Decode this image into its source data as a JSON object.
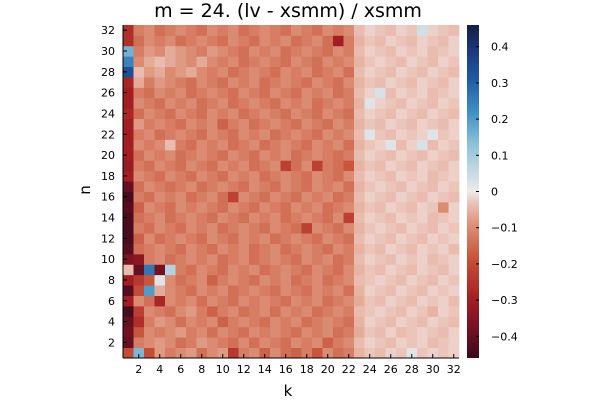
{
  "chart_data": {
    "type": "heatmap",
    "title": "m = 24. (lv - xsmm) / xsmm",
    "xlabel": "k",
    "ylabel": "n",
    "x_range": [
      1,
      32
    ],
    "y_range": [
      1,
      32
    ],
    "x_ticks": [
      2,
      4,
      6,
      8,
      10,
      12,
      14,
      16,
      18,
      20,
      22,
      24,
      26,
      28,
      30,
      32
    ],
    "y_ticks": [
      2,
      4,
      6,
      8,
      10,
      12,
      14,
      16,
      18,
      20,
      22,
      24,
      26,
      28,
      30,
      32
    ],
    "colorbar": {
      "range": [
        -0.46,
        0.46
      ],
      "ticks": [
        -0.4,
        -0.3,
        -0.2,
        -0.1,
        0,
        0.1,
        0.2,
        0.3,
        0.4
      ],
      "tick_labels": [
        "−0.4",
        "−0.3",
        "−0.2",
        "−0.1",
        "0",
        "0.1",
        "0.2",
        "0.3",
        "0.4"
      ],
      "colorscale": [
        [
          0.0,
          "#3b0a1c"
        ],
        [
          0.08,
          "#6e1022"
        ],
        [
          0.18,
          "#a51f22"
        ],
        [
          0.3,
          "#c8523a"
        ],
        [
          0.4,
          "#dd9076"
        ],
        [
          0.47,
          "#ecc7bd"
        ],
        [
          0.5,
          "#eeeaea"
        ],
        [
          0.56,
          "#c6d9e3"
        ],
        [
          0.64,
          "#8fc3d8"
        ],
        [
          0.74,
          "#3f8fc3"
        ],
        [
          0.84,
          "#1e5aa3"
        ],
        [
          0.93,
          "#1d357a"
        ],
        [
          1.0,
          "#141d44"
        ]
      ]
    },
    "values_note": "z[n-1][k-1]",
    "z": [
      [
        -0.2,
        0.15,
        -0.2,
        -0.08,
        -0.12,
        -0.1,
        -0.08,
        -0.14,
        -0.1,
        -0.08,
        -0.24,
        -0.12,
        -0.1,
        -0.16,
        -0.1,
        -0.14,
        -0.16,
        -0.12,
        -0.18,
        -0.1,
        -0.14,
        -0.12,
        -0.05,
        -0.03,
        -0.04,
        -0.02,
        -0.03,
        0.02,
        -0.03,
        -0.02,
        -0.03,
        -0.02
      ],
      [
        -0.4,
        -0.12,
        -0.1,
        -0.08,
        -0.1,
        -0.14,
        -0.12,
        -0.08,
        -0.1,
        -0.12,
        -0.14,
        -0.1,
        -0.14,
        -0.1,
        -0.12,
        -0.14,
        -0.1,
        -0.12,
        -0.1,
        -0.16,
        -0.12,
        -0.1,
        -0.04,
        -0.02,
        -0.03,
        -0.04,
        -0.02,
        -0.03,
        -0.02,
        -0.04,
        -0.03,
        -0.02
      ],
      [
        -0.38,
        -0.18,
        -0.1,
        -0.12,
        -0.1,
        -0.08,
        -0.12,
        -0.1,
        -0.14,
        -0.1,
        -0.12,
        -0.14,
        -0.1,
        -0.12,
        -0.1,
        -0.12,
        -0.14,
        -0.1,
        -0.12,
        -0.1,
        -0.14,
        -0.12,
        -0.06,
        -0.03,
        -0.04,
        -0.02,
        -0.04,
        -0.03,
        -0.02,
        -0.03,
        -0.04,
        -0.02
      ],
      [
        -0.4,
        -0.26,
        -0.12,
        -0.08,
        -0.1,
        -0.14,
        -0.1,
        -0.12,
        -0.1,
        -0.16,
        -0.12,
        -0.1,
        -0.12,
        -0.14,
        -0.1,
        -0.12,
        -0.1,
        -0.14,
        -0.12,
        -0.1,
        -0.12,
        -0.14,
        -0.05,
        -0.02,
        -0.03,
        -0.04,
        -0.02,
        -0.03,
        -0.04,
        -0.02,
        -0.03,
        -0.04
      ],
      [
        -0.44,
        -0.22,
        -0.1,
        -0.12,
        -0.14,
        -0.1,
        -0.08,
        -0.12,
        -0.16,
        -0.12,
        -0.1,
        -0.14,
        -0.12,
        -0.1,
        -0.14,
        -0.1,
        -0.12,
        -0.1,
        -0.14,
        -0.12,
        -0.1,
        -0.12,
        -0.04,
        -0.03,
        -0.02,
        -0.03,
        -0.04,
        -0.02,
        -0.03,
        -0.05,
        -0.02,
        -0.03
      ],
      [
        -0.3,
        -0.1,
        -0.14,
        -0.28,
        -0.1,
        -0.12,
        -0.1,
        -0.14,
        -0.1,
        -0.12,
        -0.14,
        -0.1,
        -0.12,
        -0.1,
        -0.12,
        -0.14,
        -0.1,
        -0.12,
        -0.1,
        -0.14,
        -0.12,
        -0.1,
        -0.06,
        -0.03,
        -0.04,
        -0.02,
        -0.03,
        -0.04,
        -0.02,
        -0.03,
        -0.02,
        -0.04
      ],
      [
        -0.42,
        -0.2,
        0.2,
        -0.06,
        -0.1,
        -0.12,
        -0.14,
        -0.1,
        -0.12,
        -0.1,
        -0.14,
        -0.12,
        -0.1,
        -0.12,
        -0.14,
        -0.1,
        -0.12,
        -0.14,
        -0.1,
        -0.12,
        -0.1,
        -0.14,
        -0.05,
        -0.02,
        -0.03,
        -0.04,
        -0.02,
        -0.03,
        -0.04,
        -0.02,
        -0.03,
        -0.02
      ],
      [
        -0.3,
        -0.24,
        -0.18,
        0.02,
        -0.1,
        -0.14,
        -0.12,
        -0.1,
        -0.16,
        -0.12,
        -0.1,
        -0.12,
        -0.14,
        -0.1,
        -0.12,
        -0.1,
        -0.14,
        -0.12,
        -0.1,
        -0.14,
        -0.12,
        -0.1,
        -0.04,
        -0.03,
        -0.02,
        -0.03,
        -0.04,
        -0.02,
        -0.03,
        -0.04,
        -0.02,
        -0.03
      ],
      [
        -0.04,
        -0.4,
        0.26,
        -0.38,
        0.08,
        -0.12,
        -0.14,
        -0.1,
        -0.12,
        -0.14,
        -0.1,
        -0.12,
        -0.1,
        -0.14,
        -0.12,
        -0.1,
        -0.12,
        -0.14,
        -0.1,
        -0.12,
        -0.14,
        -0.1,
        -0.05,
        -0.03,
        -0.04,
        -0.02,
        -0.03,
        -0.04,
        -0.02,
        -0.03,
        -0.04,
        -0.02
      ],
      [
        -0.36,
        -0.34,
        -0.12,
        -0.1,
        -0.14,
        -0.12,
        -0.1,
        -0.12,
        -0.1,
        -0.14,
        -0.12,
        -0.1,
        -0.14,
        -0.12,
        -0.1,
        -0.12,
        -0.14,
        -0.1,
        -0.12,
        -0.1,
        -0.14,
        -0.12,
        -0.04,
        -0.02,
        -0.03,
        -0.04,
        -0.02,
        -0.03,
        -0.02,
        -0.04,
        -0.03,
        -0.02
      ],
      [
        -0.42,
        -0.14,
        -0.12,
        -0.1,
        -0.12,
        -0.14,
        -0.1,
        -0.12,
        -0.14,
        -0.1,
        -0.12,
        -0.1,
        -0.14,
        -0.12,
        -0.1,
        -0.14,
        -0.12,
        -0.1,
        -0.12,
        -0.14,
        -0.1,
        -0.12,
        -0.05,
        -0.03,
        -0.04,
        -0.02,
        -0.03,
        -0.04,
        -0.02,
        -0.03,
        -0.02,
        -0.04
      ],
      [
        -0.44,
        -0.16,
        -0.1,
        -0.14,
        -0.12,
        -0.1,
        -0.12,
        -0.14,
        -0.1,
        -0.12,
        -0.14,
        -0.1,
        -0.12,
        -0.1,
        -0.14,
        -0.12,
        -0.1,
        -0.12,
        -0.14,
        -0.1,
        -0.12,
        -0.14,
        -0.04,
        -0.02,
        -0.03,
        -0.04,
        -0.02,
        -0.03,
        -0.04,
        -0.02,
        -0.03,
        -0.02
      ],
      [
        -0.44,
        -0.12,
        -0.14,
        -0.1,
        -0.12,
        -0.14,
        -0.1,
        -0.12,
        -0.1,
        -0.14,
        -0.12,
        -0.1,
        -0.12,
        -0.14,
        -0.1,
        -0.12,
        -0.14,
        -0.22,
        -0.1,
        -0.12,
        -0.14,
        -0.1,
        -0.05,
        -0.03,
        -0.02,
        -0.03,
        -0.04,
        -0.02,
        -0.03,
        -0.04,
        -0.02,
        -0.03
      ],
      [
        -0.44,
        -0.14,
        -0.12,
        -0.1,
        -0.14,
        -0.12,
        -0.1,
        -0.12,
        -0.14,
        -0.1,
        -0.12,
        -0.14,
        -0.1,
        -0.12,
        -0.1,
        -0.14,
        -0.12,
        -0.1,
        -0.12,
        -0.14,
        -0.1,
        -0.22,
        -0.04,
        -0.02,
        -0.03,
        -0.04,
        -0.02,
        -0.03,
        -0.02,
        -0.04,
        -0.03,
        -0.02
      ],
      [
        -0.42,
        -0.16,
        -0.1,
        -0.12,
        -0.14,
        -0.1,
        -0.12,
        -0.1,
        -0.12,
        -0.14,
        -0.1,
        -0.12,
        -0.14,
        -0.1,
        -0.12,
        -0.14,
        -0.1,
        -0.12,
        -0.1,
        -0.14,
        -0.12,
        -0.1,
        -0.05,
        -0.03,
        -0.04,
        -0.02,
        -0.03,
        -0.04,
        -0.02,
        -0.03,
        -0.1,
        -0.02
      ],
      [
        -0.44,
        -0.12,
        -0.14,
        -0.1,
        -0.12,
        -0.1,
        -0.14,
        -0.12,
        -0.1,
        -0.14,
        -0.22,
        -0.1,
        -0.12,
        -0.14,
        -0.1,
        -0.12,
        -0.14,
        -0.1,
        -0.12,
        -0.1,
        -0.14,
        -0.12,
        -0.04,
        -0.02,
        -0.03,
        -0.04,
        -0.02,
        -0.03,
        -0.04,
        -0.02,
        -0.03,
        -0.04
      ],
      [
        -0.4,
        -0.14,
        -0.1,
        -0.12,
        -0.14,
        -0.12,
        -0.1,
        -0.14,
        -0.12,
        -0.1,
        -0.12,
        -0.14,
        -0.1,
        -0.12,
        -0.14,
        -0.1,
        -0.12,
        -0.14,
        -0.1,
        -0.12,
        -0.1,
        -0.14,
        -0.05,
        -0.03,
        -0.02,
        -0.03,
        -0.04,
        -0.02,
        -0.03,
        -0.04,
        -0.02,
        -0.03
      ],
      [
        -0.3,
        -0.1,
        -0.12,
        -0.14,
        -0.1,
        -0.12,
        -0.14,
        -0.1,
        -0.12,
        -0.14,
        -0.1,
        -0.12,
        -0.1,
        -0.14,
        -0.12,
        -0.1,
        -0.12,
        -0.14,
        -0.1,
        -0.12,
        -0.14,
        -0.1,
        -0.04,
        -0.02,
        -0.03,
        -0.04,
        -0.02,
        -0.03,
        -0.02,
        -0.04,
        -0.03,
        -0.02
      ],
      [
        -0.32,
        -0.12,
        -0.14,
        -0.1,
        -0.12,
        -0.14,
        -0.1,
        -0.12,
        -0.14,
        -0.1,
        -0.12,
        -0.1,
        -0.14,
        -0.12,
        -0.1,
        -0.22,
        -0.14,
        -0.1,
        -0.22,
        -0.12,
        -0.14,
        -0.18,
        -0.05,
        -0.03,
        -0.04,
        -0.02,
        -0.03,
        -0.04,
        -0.02,
        -0.03,
        -0.04,
        -0.02
      ],
      [
        -0.3,
        -0.14,
        -0.1,
        -0.12,
        -0.1,
        -0.14,
        -0.12,
        -0.1,
        -0.12,
        -0.14,
        -0.1,
        -0.12,
        -0.14,
        -0.1,
        -0.12,
        -0.1,
        -0.14,
        -0.12,
        -0.1,
        -0.12,
        -0.14,
        -0.12,
        -0.04,
        -0.02,
        -0.03,
        -0.04,
        -0.02,
        -0.03,
        -0.04,
        -0.02,
        -0.03,
        -0.04
      ],
      [
        -0.3,
        -0.1,
        -0.12,
        -0.1,
        -0.04,
        -0.12,
        -0.14,
        -0.1,
        -0.12,
        -0.1,
        -0.14,
        -0.12,
        -0.1,
        -0.14,
        -0.12,
        -0.1,
        -0.12,
        -0.14,
        -0.1,
        -0.12,
        -0.1,
        -0.14,
        -0.05,
        -0.03,
        -0.02,
        0.02,
        -0.04,
        -0.02,
        0.03,
        -0.04,
        -0.02,
        -0.03
      ],
      [
        -0.3,
        -0.12,
        -0.1,
        -0.14,
        -0.12,
        -0.1,
        -0.12,
        -0.14,
        -0.1,
        -0.12,
        -0.14,
        -0.1,
        -0.12,
        -0.1,
        -0.14,
        -0.12,
        -0.1,
        -0.12,
        -0.14,
        -0.1,
        -0.12,
        -0.1,
        -0.04,
        0.02,
        -0.03,
        -0.04,
        -0.02,
        -0.03,
        -0.02,
        0.02,
        -0.03,
        -0.02
      ],
      [
        -0.3,
        -0.08,
        -0.12,
        -0.1,
        -0.12,
        -0.14,
        -0.1,
        -0.12,
        -0.1,
        -0.16,
        -0.12,
        -0.1,
        -0.14,
        -0.12,
        -0.1,
        -0.12,
        -0.14,
        -0.1,
        -0.12,
        -0.14,
        -0.1,
        -0.12,
        -0.05,
        -0.03,
        -0.04,
        -0.02,
        -0.03,
        -0.04,
        -0.02,
        -0.03,
        -0.04,
        -0.02
      ],
      [
        -0.28,
        -0.14,
        -0.1,
        -0.12,
        -0.14,
        -0.1,
        -0.12,
        -0.14,
        -0.1,
        -0.12,
        -0.1,
        -0.14,
        -0.12,
        -0.1,
        -0.12,
        -0.14,
        -0.1,
        -0.12,
        -0.14,
        -0.1,
        -0.12,
        -0.14,
        -0.04,
        -0.02,
        -0.03,
        -0.04,
        -0.02,
        -0.03,
        -0.04,
        -0.02,
        -0.03,
        -0.04
      ],
      [
        -0.3,
        -0.1,
        -0.12,
        -0.14,
        -0.1,
        -0.12,
        -0.1,
        -0.14,
        -0.12,
        -0.1,
        -0.14,
        -0.12,
        -0.1,
        -0.12,
        -0.14,
        -0.1,
        -0.12,
        -0.1,
        -0.14,
        -0.12,
        -0.1,
        -0.12,
        -0.05,
        0.02,
        -0.02,
        -0.03,
        -0.04,
        -0.02,
        -0.03,
        -0.04,
        -0.02,
        -0.03
      ],
      [
        -0.3,
        -0.12,
        -0.14,
        -0.1,
        -0.12,
        -0.1,
        -0.14,
        -0.12,
        -0.1,
        -0.12,
        -0.14,
        -0.1,
        -0.12,
        -0.14,
        -0.1,
        -0.12,
        -0.14,
        -0.1,
        -0.12,
        -0.1,
        -0.14,
        -0.12,
        -0.04,
        -0.02,
        0.03,
        -0.04,
        -0.02,
        -0.03,
        -0.02,
        -0.04,
        -0.03,
        -0.02
      ],
      [
        -0.28,
        -0.06,
        -0.12,
        -0.08,
        -0.1,
        -0.12,
        -0.14,
        -0.1,
        -0.12,
        -0.14,
        -0.1,
        -0.12,
        -0.1,
        -0.14,
        -0.12,
        -0.1,
        -0.12,
        -0.14,
        -0.1,
        -0.12,
        -0.14,
        -0.1,
        -0.05,
        -0.03,
        -0.04,
        -0.02,
        -0.03,
        -0.04,
        -0.02,
        -0.03,
        -0.04,
        -0.02
      ],
      [
        0.34,
        -0.04,
        -0.08,
        -0.06,
        -0.1,
        -0.08,
        -0.06,
        -0.1,
        -0.12,
        -0.1,
        -0.14,
        -0.12,
        -0.1,
        -0.12,
        -0.14,
        -0.1,
        -0.12,
        -0.1,
        -0.14,
        -0.12,
        -0.1,
        -0.14,
        -0.04,
        -0.02,
        -0.03,
        -0.04,
        -0.02,
        -0.03,
        -0.04,
        -0.02,
        -0.03,
        -0.04
      ],
      [
        0.24,
        -0.1,
        -0.06,
        -0.04,
        -0.06,
        -0.08,
        -0.1,
        -0.06,
        -0.1,
        -0.12,
        -0.1,
        -0.14,
        -0.12,
        -0.1,
        -0.12,
        -0.14,
        -0.1,
        -0.12,
        -0.14,
        -0.1,
        -0.12,
        -0.1,
        -0.05,
        -0.03,
        -0.02,
        -0.03,
        -0.04,
        -0.02,
        -0.03,
        -0.04,
        -0.02,
        -0.03
      ],
      [
        0.16,
        -0.12,
        -0.08,
        -0.1,
        -0.06,
        -0.08,
        -0.1,
        -0.12,
        -0.08,
        -0.1,
        -0.12,
        -0.14,
        -0.1,
        -0.12,
        -0.1,
        -0.14,
        -0.12,
        -0.1,
        -0.12,
        -0.14,
        -0.1,
        -0.12,
        -0.04,
        -0.02,
        -0.03,
        -0.04,
        -0.02,
        -0.03,
        -0.02,
        -0.04,
        -0.03,
        -0.02
      ],
      [
        -0.26,
        -0.14,
        -0.1,
        -0.12,
        -0.1,
        -0.14,
        -0.12,
        -0.1,
        -0.12,
        -0.14,
        -0.1,
        -0.12,
        -0.14,
        -0.1,
        -0.12,
        -0.1,
        -0.14,
        -0.12,
        -0.1,
        -0.14,
        -0.3,
        -0.12,
        -0.05,
        -0.03,
        -0.04,
        -0.02,
        -0.03,
        -0.04,
        -0.02,
        -0.03,
        -0.04,
        -0.02
      ],
      [
        -0.26,
        -0.12,
        -0.1,
        -0.14,
        -0.12,
        -0.1,
        -0.12,
        -0.14,
        -0.1,
        -0.12,
        -0.1,
        -0.14,
        -0.12,
        -0.1,
        -0.12,
        -0.14,
        -0.1,
        -0.12,
        -0.14,
        -0.1,
        -0.12,
        -0.1,
        -0.04,
        -0.02,
        -0.03,
        -0.04,
        -0.02,
        -0.03,
        0.04,
        -0.02,
        -0.03,
        -0.04
      ]
    ]
  }
}
